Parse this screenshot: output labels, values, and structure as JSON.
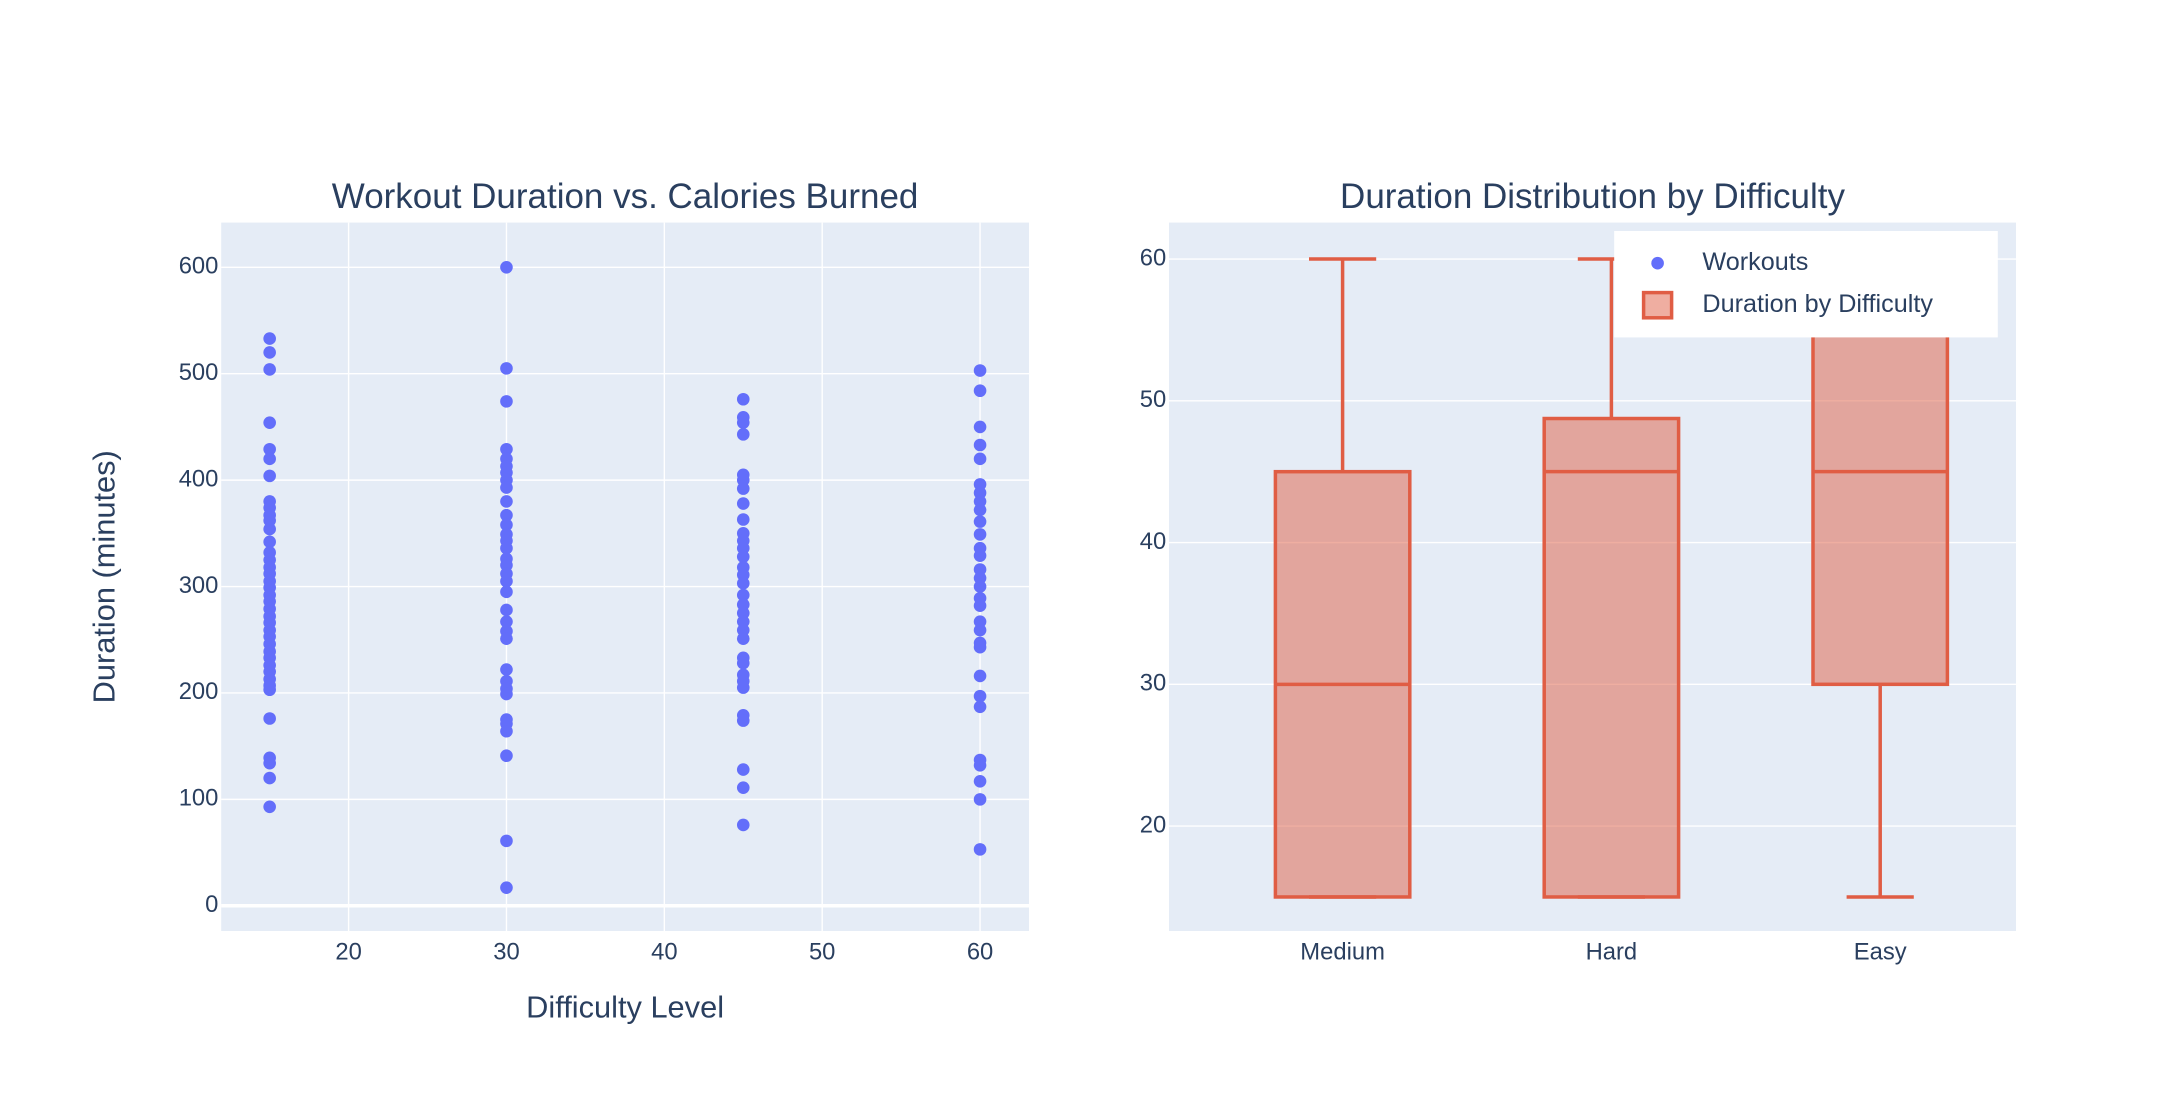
{
  "chart_data": [
    {
      "type": "scatter",
      "title": "Workout Duration vs. Calories Burned",
      "x_label": "Difficulty Level",
      "y_label": "Duration (minutes)",
      "series": [
        {
          "name": "Workouts",
          "color": "#636efa",
          "x": [
            15,
            15,
            15,
            15,
            15,
            15,
            15,
            15,
            15,
            15,
            15,
            15,
            15,
            15,
            15,
            15,
            15,
            15,
            15,
            15,
            15,
            15,
            15,
            15,
            15,
            15,
            15,
            15,
            15,
            15,
            15,
            15,
            15,
            15,
            15,
            15,
            15,
            15,
            15,
            30,
            30,
            30,
            30,
            30,
            30,
            30,
            30,
            30,
            30,
            30,
            30,
            30,
            30,
            30,
            30,
            30,
            30,
            30,
            30,
            30,
            30,
            30,
            30,
            30,
            30,
            30,
            30,
            30,
            30,
            30,
            30,
            30,
            30,
            45,
            45,
            45,
            45,
            45,
            45,
            45,
            45,
            45,
            45,
            45,
            45,
            45,
            45,
            45,
            45,
            45,
            45,
            45,
            45,
            45,
            45,
            45,
            45,
            45,
            45,
            45,
            45,
            45,
            45,
            45,
            45,
            60,
            60,
            60,
            60,
            60,
            60,
            60,
            60,
            60,
            60,
            60,
            60,
            60,
            60,
            60,
            60,
            60,
            60,
            60,
            60,
            60,
            60,
            60,
            60,
            60,
            60,
            60,
            60,
            60,
            60
          ],
          "values": [
            533,
            520,
            504,
            454,
            429,
            420,
            404,
            380,
            374,
            367,
            362,
            354,
            342,
            332,
            325,
            318,
            312,
            305,
            299,
            292,
            286,
            279,
            272,
            266,
            259,
            253,
            246,
            239,
            233,
            226,
            220,
            213,
            207,
            203,
            176,
            139,
            134,
            120,
            93,
            600,
            505,
            474,
            429,
            420,
            413,
            407,
            400,
            393,
            380,
            367,
            358,
            349,
            343,
            336,
            326,
            320,
            312,
            305,
            295,
            278,
            267,
            258,
            251,
            222,
            211,
            204,
            199,
            175,
            171,
            164,
            141,
            61,
            17,
            476,
            459,
            454,
            443,
            405,
            400,
            392,
            378,
            363,
            350,
            343,
            336,
            328,
            318,
            311,
            303,
            292,
            283,
            275,
            267,
            259,
            251,
            233,
            228,
            217,
            211,
            205,
            179,
            174,
            128,
            111,
            76,
            503,
            484,
            450,
            433,
            420,
            396,
            388,
            380,
            372,
            361,
            349,
            336,
            329,
            316,
            308,
            300,
            289,
            282,
            267,
            259,
            247,
            243,
            216,
            197,
            187,
            137,
            132,
            117,
            100,
            53
          ]
        }
      ],
      "xlim": [
        11.93,
        63.1
      ],
      "xticks": [
        20,
        30,
        40,
        50,
        60
      ],
      "ylim": [
        -23.7,
        642
      ],
      "yticks": [
        0,
        100,
        200,
        300,
        400,
        500,
        600
      ],
      "grid": true
    },
    {
      "type": "box",
      "title": "Duration Distribution by Difficulty",
      "categories": [
        "Medium",
        "Hard",
        "Easy"
      ],
      "series": [
        {
          "name": "Duration by Difficulty",
          "color": "#e05d44",
          "min": [
            15,
            15,
            15
          ],
          "q1": [
            15,
            15,
            30
          ],
          "median": [
            30,
            45,
            45
          ],
          "q3": [
            45,
            48.75,
            60
          ],
          "max": [
            60,
            60,
            60
          ]
        }
      ],
      "ylim": [
        12.6,
        62.57
      ],
      "yticks": [
        20,
        30,
        40,
        50,
        60
      ],
      "grid": true,
      "legend": "top right"
    }
  ]
}
